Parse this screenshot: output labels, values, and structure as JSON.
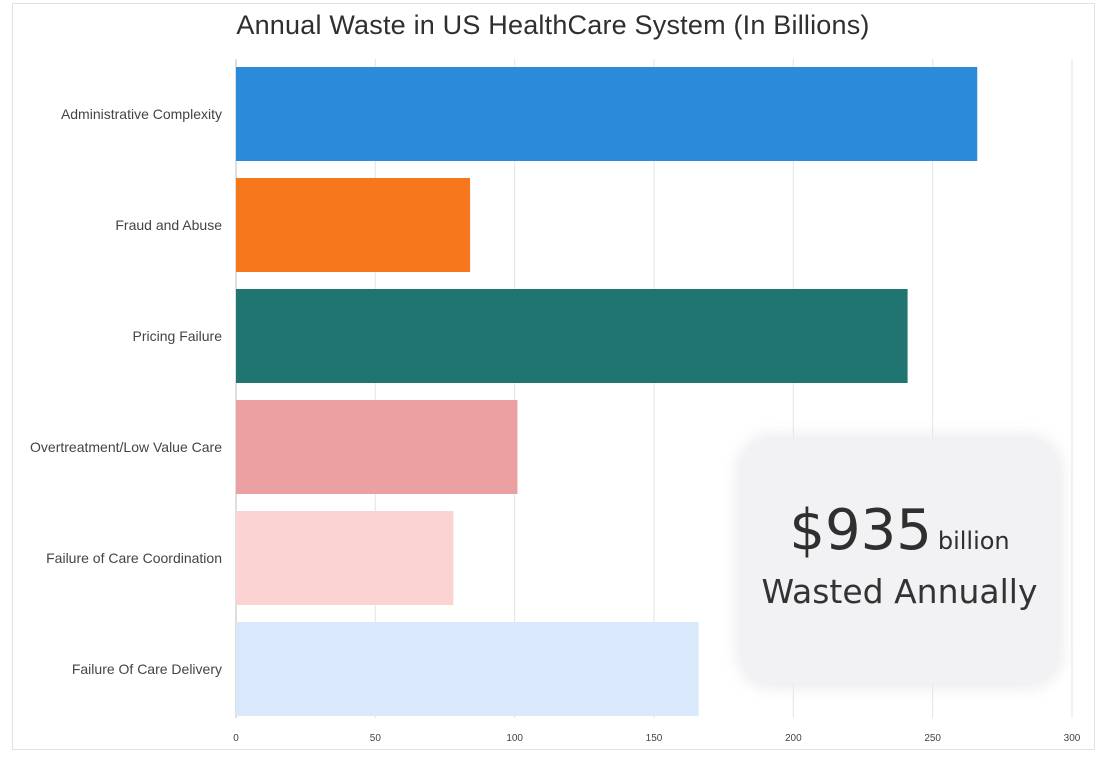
{
  "chart_data": {
    "type": "bar",
    "orientation": "horizontal",
    "title": "Annual Waste in US HealthCare System (In Billions)",
    "categories": [
      "Administrative Complexity",
      "Fraud and Abuse",
      "Pricing Failure",
      "Overtreatment/Low Value Care",
      "Failure of Care Coordination",
      "Failure Of Care Delivery"
    ],
    "values": [
      266,
      84,
      241,
      101,
      78,
      166
    ],
    "colors": [
      "#2b8ad9",
      "#f7781c",
      "#207570",
      "#eba1a1",
      "#fbd3d3",
      "#d9e8fb"
    ],
    "xlim": [
      0,
      300
    ],
    "xticks": [
      "0",
      "50",
      "100",
      "150",
      "200",
      "250",
      "300"
    ],
    "grid": true
  },
  "callout": {
    "amount": "$935",
    "unit": "billion",
    "caption": "Wasted Annually"
  }
}
